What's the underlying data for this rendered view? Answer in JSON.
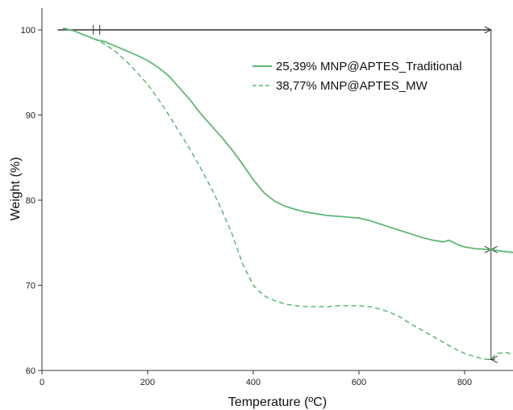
{
  "chart_data": {
    "type": "line",
    "title": "",
    "xlabel": "Temperature (ºC)",
    "ylabel": "Weight (%)",
    "xlim": [
      0,
      900
    ],
    "ylim": [
      60,
      102
    ],
    "x_ticks": [
      0,
      200,
      400,
      600,
      800
    ],
    "y_ticks": [
      60,
      70,
      80,
      90,
      100
    ],
    "grid": false,
    "legend_position": "top-right",
    "series": [
      {
        "name": "25,39% MNP@APTES_Traditional",
        "style": "solid",
        "color": "#5cb874",
        "x": [
          40,
          60,
          80,
          100,
          120,
          150,
          180,
          200,
          220,
          240,
          260,
          280,
          300,
          320,
          340,
          360,
          380,
          400,
          420,
          440,
          460,
          480,
          500,
          520,
          540,
          560,
          580,
          600,
          620,
          640,
          660,
          680,
          700,
          720,
          740,
          760,
          770,
          780,
          790,
          800,
          820,
          850,
          870,
          900
        ],
        "y": [
          100.2,
          99.9,
          99.4,
          98.9,
          98.6,
          97.8,
          97.0,
          96.4,
          95.6,
          94.6,
          93.2,
          91.8,
          90.2,
          88.8,
          87.4,
          85.9,
          84.2,
          82.4,
          80.9,
          79.9,
          79.3,
          78.9,
          78.6,
          78.4,
          78.2,
          78.1,
          78.0,
          77.9,
          77.6,
          77.2,
          76.8,
          76.4,
          76.0,
          75.6,
          75.3,
          75.1,
          75.3,
          75.0,
          74.7,
          74.5,
          74.3,
          74.2,
          74.0,
          73.8
        ]
      },
      {
        "name": "38,77% MNP@APTES_MW",
        "style": "dashed",
        "color": "#5cb874",
        "x": [
          40,
          60,
          80,
          100,
          120,
          140,
          160,
          180,
          200,
          220,
          240,
          260,
          280,
          300,
          320,
          340,
          360,
          380,
          400,
          420,
          440,
          460,
          480,
          500,
          520,
          540,
          560,
          580,
          600,
          620,
          640,
          660,
          680,
          700,
          720,
          740,
          760,
          780,
          800,
          820,
          840,
          850,
          860,
          880,
          900
        ],
        "y": [
          100.2,
          99.9,
          99.4,
          98.9,
          98.3,
          97.4,
          96.3,
          95.0,
          93.6,
          91.9,
          90.0,
          88.0,
          86.0,
          83.8,
          81.5,
          78.9,
          76.0,
          72.5,
          70.0,
          68.8,
          68.2,
          67.8,
          67.6,
          67.5,
          67.5,
          67.5,
          67.6,
          67.6,
          67.6,
          67.5,
          67.2,
          66.8,
          66.2,
          65.4,
          64.7,
          64.0,
          63.3,
          62.6,
          62.0,
          61.6,
          61.3,
          61.3,
          62.0,
          62.1,
          61.7
        ]
      }
    ],
    "annotations": [
      {
        "type": "horizontal-line",
        "y": 100.0,
        "x_from": 30,
        "x_to": 850
      },
      {
        "type": "double-arrow",
        "x": 850,
        "y_from": 100.0,
        "y_to": 74.2
      },
      {
        "type": "double-arrow",
        "x": 850,
        "y_from": 74.2,
        "y_to": 61.3
      }
    ]
  }
}
